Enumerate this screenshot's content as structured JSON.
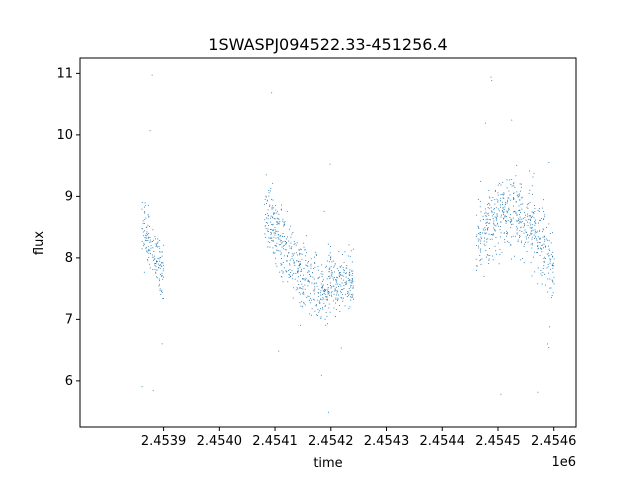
{
  "chart_data": {
    "type": "scatter",
    "title": "1SWASPJ094522.33-451256.4",
    "xlabel": "time",
    "ylabel": "flux",
    "x_offset_label": "1e6",
    "xlim": [
      2.45375,
      2.45464
    ],
    "ylim": [
      5.25,
      11.25
    ],
    "x_ticks": [
      2.4539,
      2.454,
      2.4541,
      2.4542,
      2.4543,
      2.4544,
      2.4545,
      2.4546
    ],
    "x_tick_labels": [
      "2.4539",
      "2.4540",
      "2.4541",
      "2.4542",
      "2.4543",
      "2.4544",
      "2.4545",
      "2.4546"
    ],
    "y_ticks": [
      6,
      7,
      8,
      9,
      10,
      11
    ],
    "y_tick_labels": [
      "6",
      "7",
      "8",
      "9",
      "10",
      "11"
    ],
    "grid": false,
    "point_color": "#1f77b4",
    "note_series": "dense light-curve points; sampled representative segments below",
    "segments": [
      {
        "x": [
          2.45386,
          2.4539
        ],
        "center": [
          8.4,
          8.1
        ],
        "spread": 0.45
      },
      {
        "x": [
          2.45408,
          2.4542
        ],
        "center": [
          8.3,
          8.0
        ],
        "spread": 0.55
      },
      {
        "x": [
          2.4542,
          2.45424
        ],
        "center": [
          8.0,
          7.6
        ],
        "spread": 0.45
      },
      {
        "x": [
          2.45446,
          2.4546
        ],
        "center": [
          8.5,
          7.9
        ],
        "spread": 0.6
      }
    ]
  }
}
